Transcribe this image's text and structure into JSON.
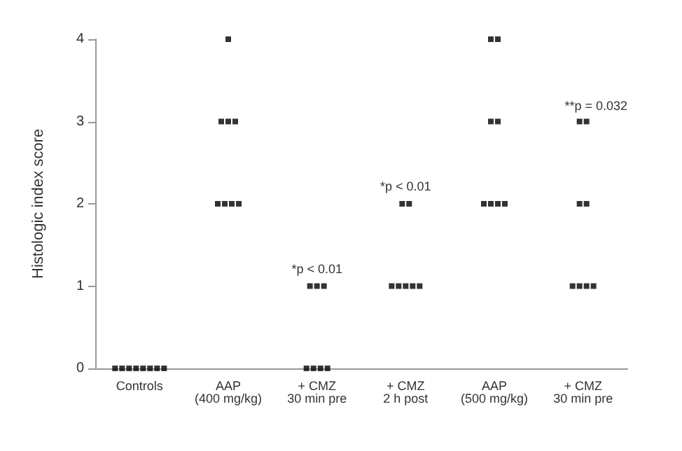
{
  "chart_data": {
    "type": "scatter",
    "ylabel": "Histologic index score",
    "categories": [
      "Controls",
      "AAP\n(400 mg/kg)",
      "+ CMZ\n30 min pre",
      "+ CMZ\n2 h post",
      "AAP\n(500 mg/kg)",
      "+ CMZ\n30 min pre"
    ],
    "series": [
      {
        "color": "#000000",
        "values": [
          0,
          4,
          1,
          2,
          4,
          3
        ]
      },
      {
        "color": "#000000",
        "values": [
          0,
          3,
          1,
          2,
          4,
          3
        ]
      },
      {
        "color": "#000000",
        "values": [
          0,
          3,
          1,
          1,
          3,
          2
        ]
      },
      {
        "color": "#000000",
        "values": [
          0,
          3,
          0,
          1,
          3,
          2
        ]
      },
      {
        "color": "#000000",
        "values": [
          0,
          2,
          0,
          1,
          2,
          1
        ]
      },
      {
        "color": "#000000",
        "values": [
          0,
          2,
          0,
          1,
          2,
          1
        ]
      },
      {
        "color": "#000000",
        "values": [
          0,
          2,
          0,
          1,
          2,
          1
        ]
      },
      {
        "color": "#000000",
        "values": [
          0,
          2,
          null,
          null,
          2,
          1
        ]
      }
    ],
    "annotations": [
      {
        "text": "*p < 0.01",
        "x": "+ CMZ\n30 min pre",
        "y": 1
      },
      {
        "text": "*p < 0.01",
        "x": "+ CMZ\n2 h post",
        "y": 2
      },
      "**p = 0.032"
    ],
    "ylim": [
      0,
      4
    ],
    "yticks": [
      0,
      1,
      2,
      3,
      4
    ],
    "grid": false,
    "marker": "square"
  }
}
